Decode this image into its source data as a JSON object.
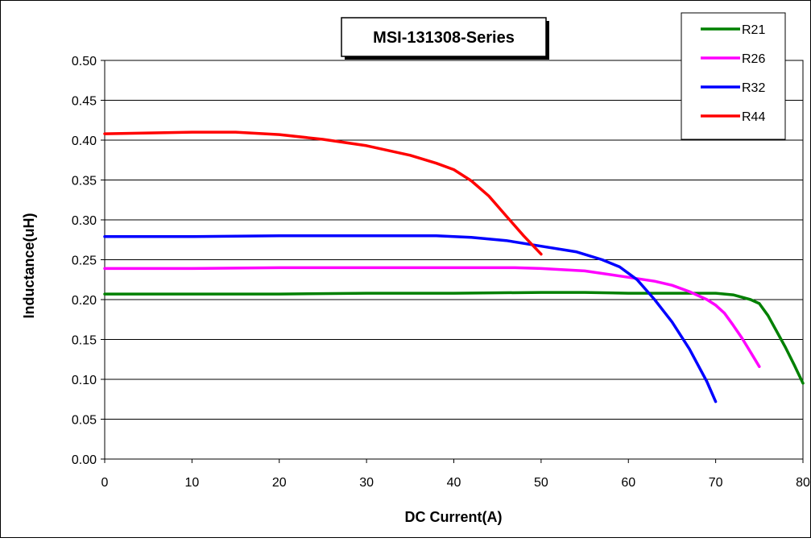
{
  "chart_data": {
    "type": "line",
    "title": "MSI-131308-Series",
    "xlabel": "DC Current(A)",
    "ylabel": "Inductance(uH)",
    "xlim": [
      0,
      80
    ],
    "ylim": [
      0,
      0.5
    ],
    "x_ticks": [
      "0",
      "10",
      "20",
      "30",
      "40",
      "50",
      "60",
      "70",
      "80"
    ],
    "y_ticks": [
      "0.00",
      "0.05",
      "0.10",
      "0.15",
      "0.20",
      "0.25",
      "0.30",
      "0.35",
      "0.40",
      "0.45",
      "0.50"
    ],
    "grid": "horizontal",
    "legend_position": "top-right",
    "series": [
      {
        "name": "R21",
        "color": "#008000",
        "x": [
          0,
          10,
          20,
          30,
          40,
          50,
          55,
          60,
          65,
          68,
          70,
          72,
          74,
          75,
          76,
          77,
          78,
          79,
          80
        ],
        "y": [
          0.207,
          0.207,
          0.207,
          0.208,
          0.208,
          0.209,
          0.209,
          0.208,
          0.208,
          0.208,
          0.208,
          0.206,
          0.2,
          0.195,
          0.18,
          0.16,
          0.14,
          0.118,
          0.095
        ]
      },
      {
        "name": "R26",
        "color": "#ff00ff",
        "x": [
          0,
          10,
          20,
          30,
          40,
          47,
          50,
          55,
          60,
          63,
          65,
          67,
          69,
          70,
          71,
          72,
          73,
          74,
          75
        ],
        "y": [
          0.239,
          0.239,
          0.24,
          0.24,
          0.24,
          0.24,
          0.239,
          0.236,
          0.228,
          0.223,
          0.218,
          0.21,
          0.2,
          0.193,
          0.183,
          0.168,
          0.152,
          0.134,
          0.116
        ]
      },
      {
        "name": "R32",
        "color": "#0000ff",
        "x": [
          0,
          10,
          20,
          30,
          38,
          42,
          46,
          50,
          54,
          57,
          59,
          61,
          63,
          65,
          67,
          69,
          70
        ],
        "y": [
          0.279,
          0.279,
          0.28,
          0.28,
          0.28,
          0.278,
          0.274,
          0.267,
          0.26,
          0.25,
          0.241,
          0.225,
          0.2,
          0.172,
          0.138,
          0.097,
          0.072
        ]
      },
      {
        "name": "R44",
        "color": "#ff0000",
        "x": [
          0,
          5,
          10,
          15,
          20,
          25,
          30,
          35,
          38,
          40,
          42,
          44,
          46,
          48,
          50
        ],
        "y": [
          0.408,
          0.409,
          0.41,
          0.41,
          0.407,
          0.401,
          0.393,
          0.381,
          0.371,
          0.363,
          0.349,
          0.33,
          0.305,
          0.28,
          0.257
        ]
      }
    ]
  }
}
